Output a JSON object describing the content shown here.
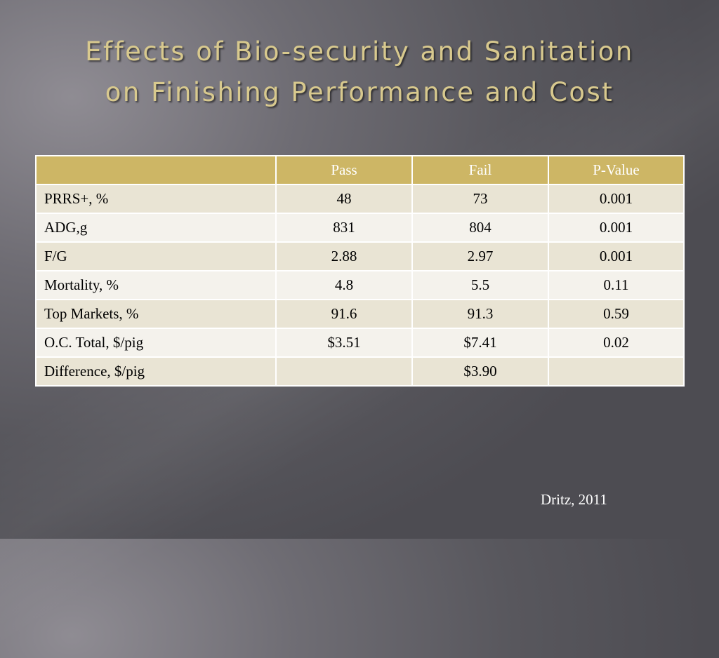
{
  "slide": {
    "title_line1": "Effects of Bio-security and Sanitation",
    "title_line2": "on Finishing Performance and Cost",
    "citation": "Dritz, 2011"
  },
  "table": {
    "headers": [
      "",
      "Pass",
      "Fail",
      "P-Value"
    ],
    "rows": [
      {
        "label": "PRRS+, %",
        "pass": "48",
        "fail": "73",
        "p": "0.001"
      },
      {
        "label": "ADG,g",
        "pass": "831",
        "fail": "804",
        "p": "0.001"
      },
      {
        "label": "F/G",
        "pass": "2.88",
        "fail": "2.97",
        "p": "0.001"
      },
      {
        "label": "Mortality, %",
        "pass": "4.8",
        "fail": "5.5",
        "p": "0.11"
      },
      {
        "label": "Top Markets, %",
        "pass": "91.6",
        "fail": "91.3",
        "p": "0.59"
      },
      {
        "label": "O.C. Total, $/pig",
        "pass": "$3.51",
        "fail": "$7.41",
        "p": "0.02"
      },
      {
        "label": "Difference, $/pig",
        "pass": "",
        "fail": "$3.90",
        "p": ""
      }
    ]
  },
  "colors": {
    "title": "#d8c98e",
    "header_bg": "#cdb665",
    "row_odd": "#e9e4d4",
    "row_even": "#f4f2ec"
  }
}
